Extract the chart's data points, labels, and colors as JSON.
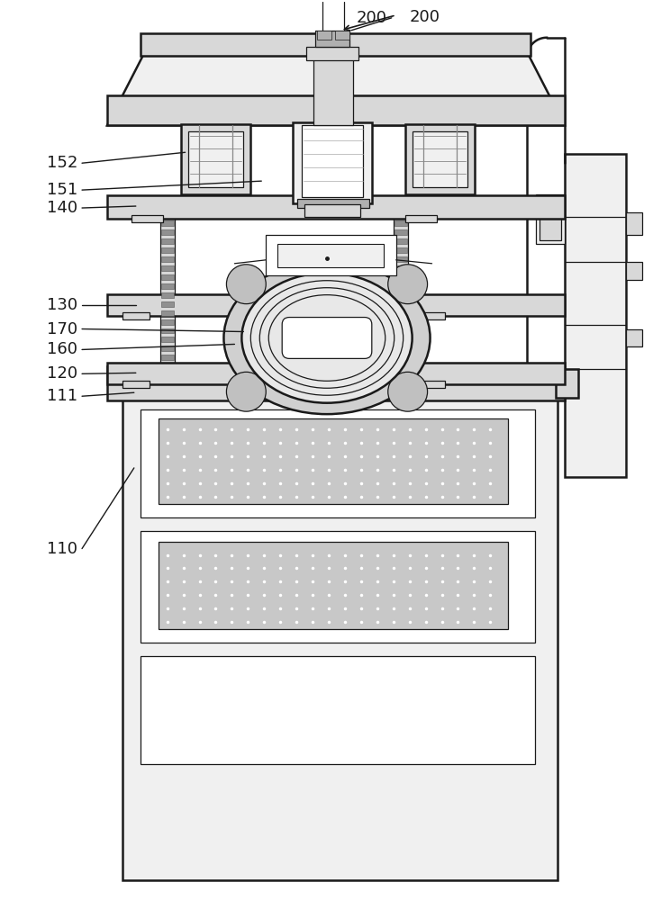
{
  "bg_color": "#ffffff",
  "lc": "#1a1a1a",
  "figsize": [
    7.25,
    10.0
  ],
  "dpi": 100,
  "lw_main": 1.8,
  "lw_thin": 0.9,
  "fc_white": "#ffffff",
  "fc_light": "#f0f0f0",
  "fc_mid": "#d8d8d8",
  "fc_dark": "#b0b0b0"
}
